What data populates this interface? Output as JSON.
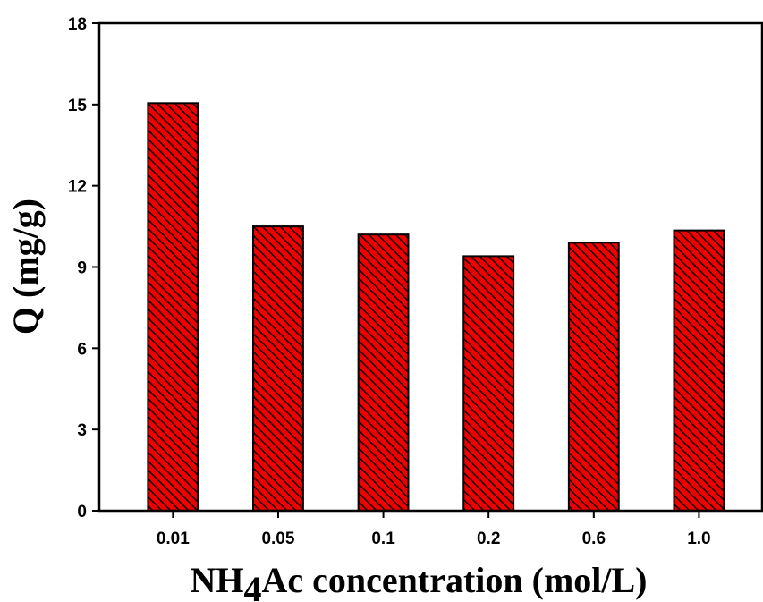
{
  "chart_data": {
    "type": "bar",
    "categories": [
      "0.01",
      "0.05",
      "0.1",
      "0.2",
      "0.6",
      "1.0"
    ],
    "values": [
      15.05,
      10.5,
      10.2,
      9.4,
      9.9,
      10.35
    ],
    "title": "",
    "xlabel_parts": {
      "pre": "NH",
      "sub": "4",
      "post": "Ac concentration (mol/L)"
    },
    "ylabel": "Q (mg/g)",
    "ylim": [
      0,
      18
    ],
    "yticks": [
      0,
      3,
      6,
      9,
      12,
      15,
      18
    ],
    "grid": false,
    "legend": "none",
    "bar_color": "#ee0000",
    "bar_pattern": "diagonal-hatch"
  }
}
